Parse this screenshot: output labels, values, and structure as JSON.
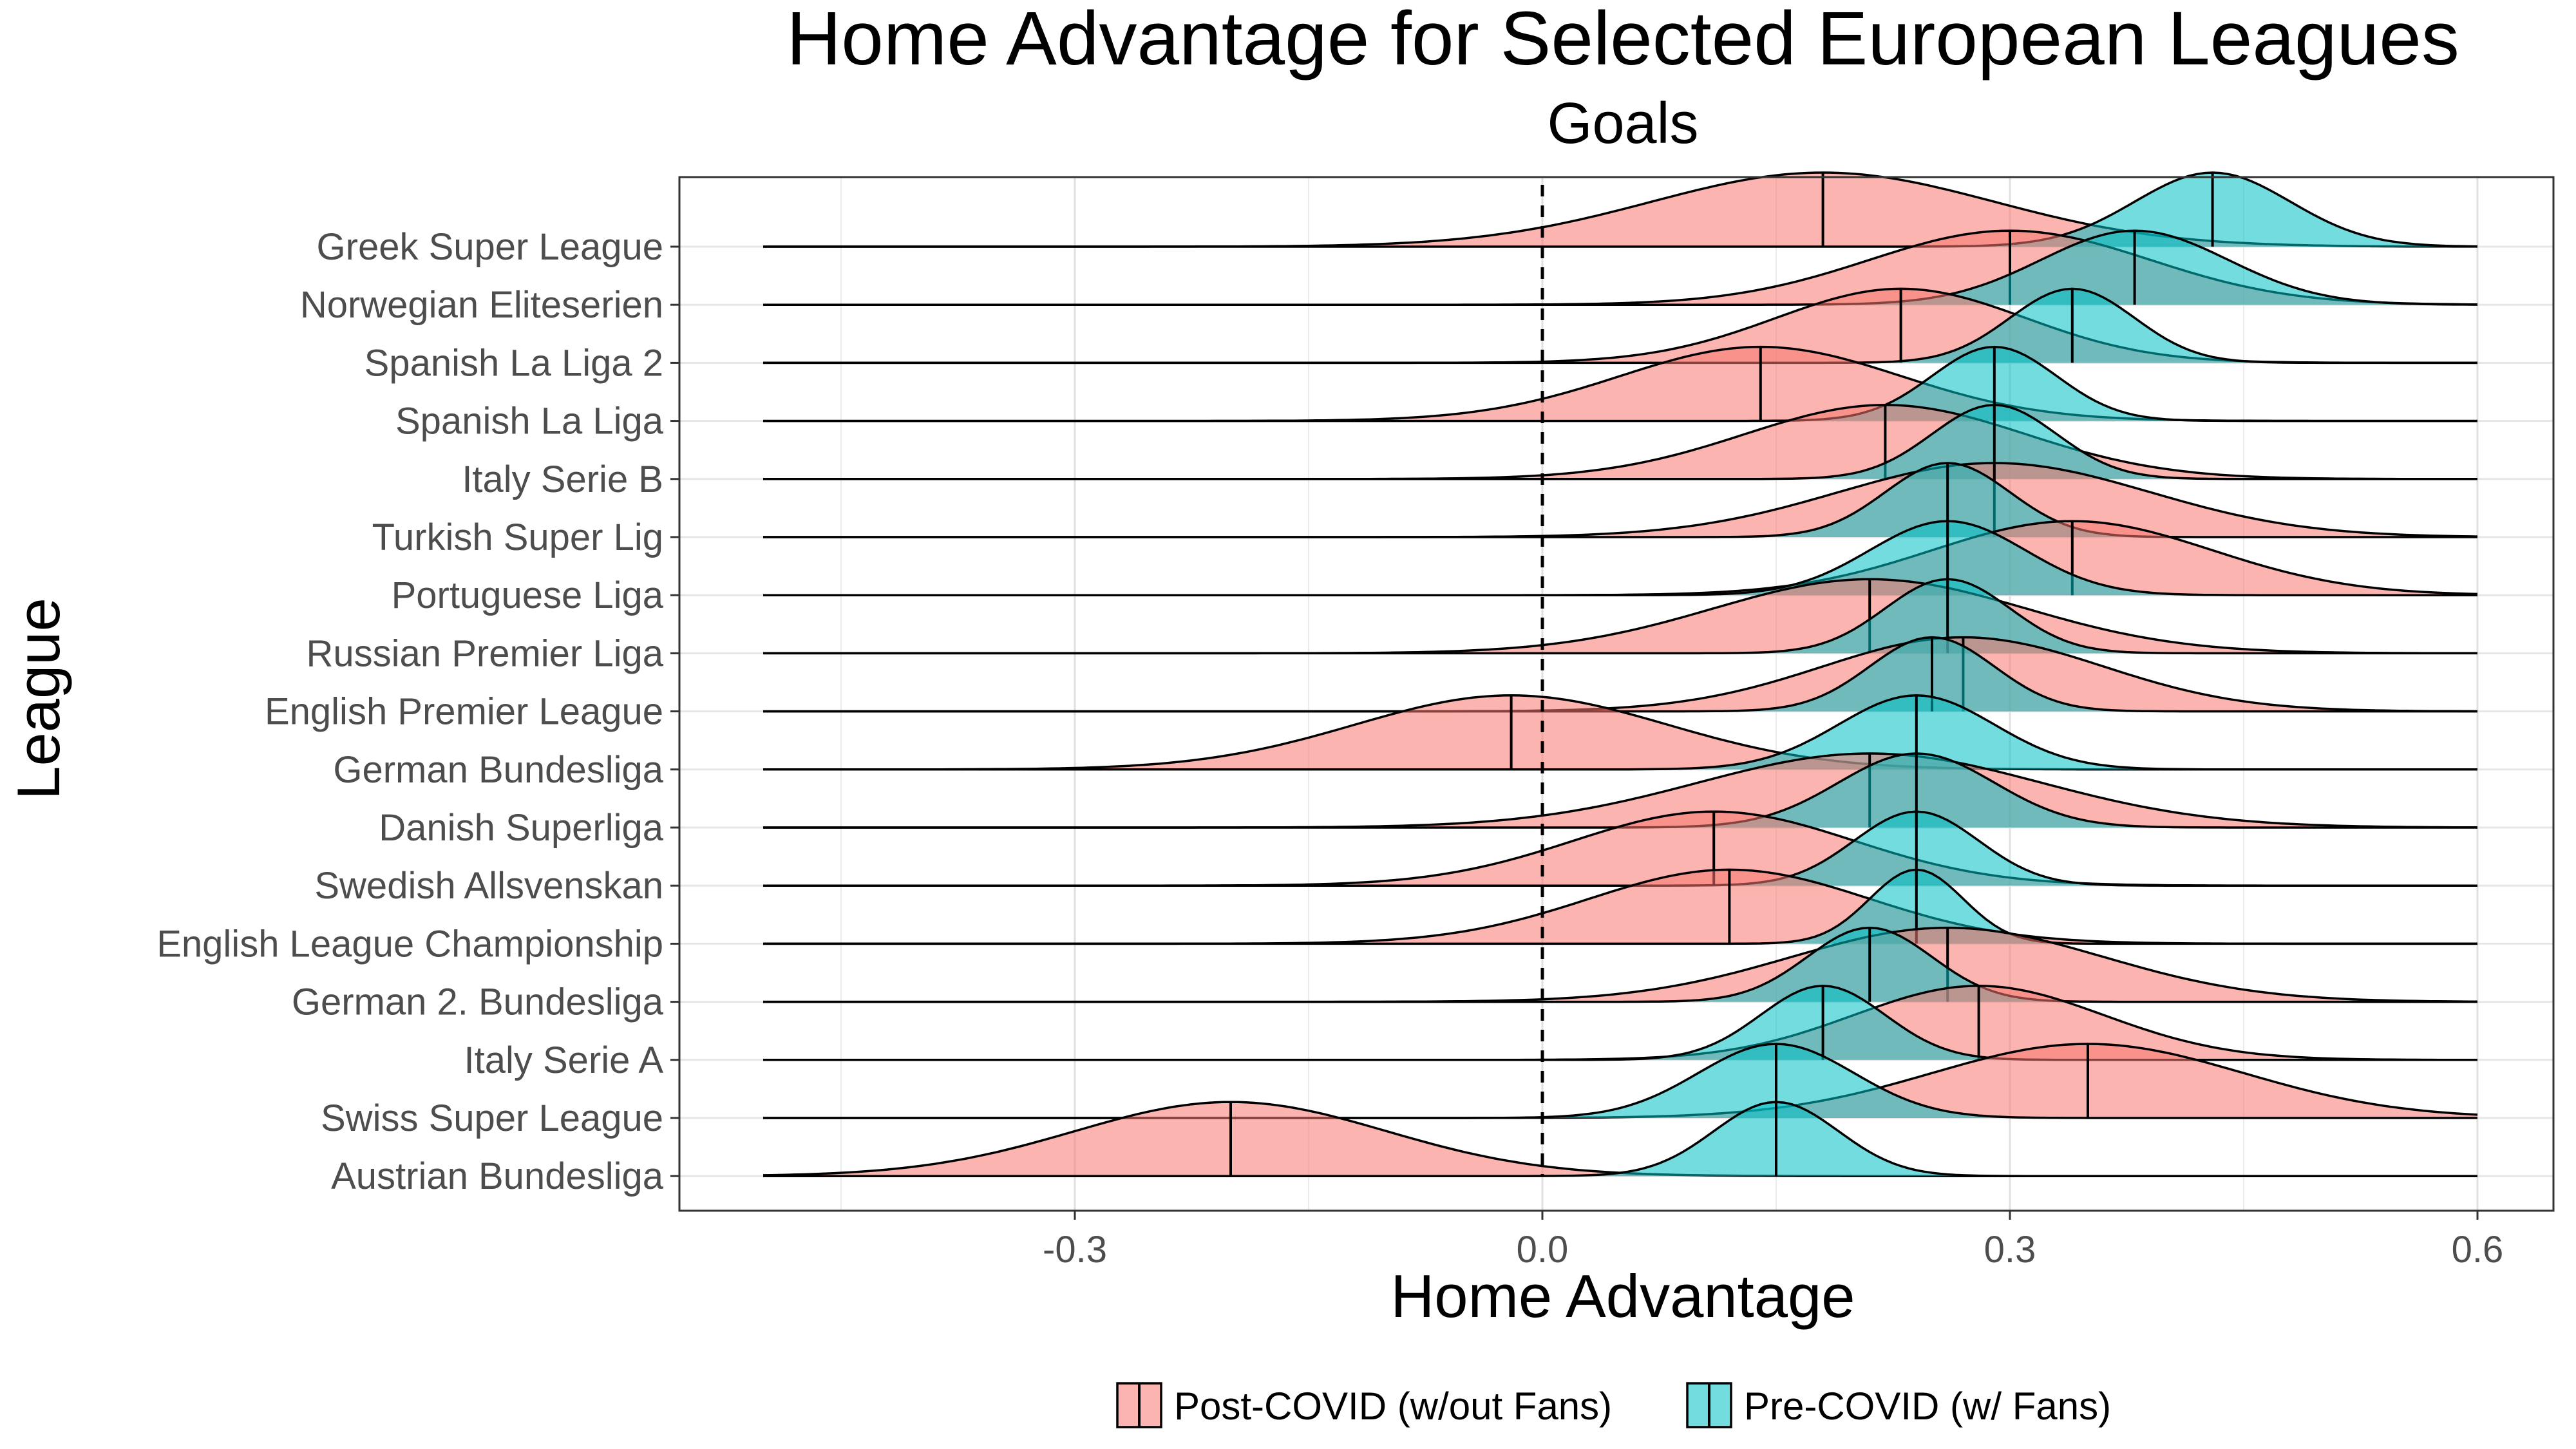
{
  "chart_data": {
    "type": "ridgeline",
    "title": "Home Advantage for Selected European Leagues",
    "subtitle": "Goals",
    "xlabel": "Home Advantage",
    "ylabel": "League",
    "xlim": [
      -0.5,
      0.6
    ],
    "x_ticks": [
      {
        "value": -0.3,
        "label": "-0.3"
      },
      {
        "value": 0.0,
        "label": "0.0"
      },
      {
        "value": 0.3,
        "label": "0.3"
      },
      {
        "value": 0.6,
        "label": "0.6"
      }
    ],
    "reference_line": {
      "value": 0.0,
      "style": "dashed"
    },
    "grid": true,
    "legend_position": "bottom",
    "series": [
      {
        "name": "Post-COVID (w/out Fans)",
        "color": "#F8766D"
      },
      {
        "name": "Pre-COVID (w/ Fans)",
        "color": "#00BFC4"
      }
    ],
    "categories": [
      {
        "league": "Greek Super League",
        "post": {
          "mean": 0.18,
          "sd": 0.11
        },
        "pre": {
          "mean": 0.43,
          "sd": 0.05
        }
      },
      {
        "league": "Norwegian Eliteserien",
        "post": {
          "mean": 0.3,
          "sd": 0.09
        },
        "pre": {
          "mean": 0.38,
          "sd": 0.06
        }
      },
      {
        "league": "Spanish La Liga 2",
        "post": {
          "mean": 0.23,
          "sd": 0.08
        },
        "pre": {
          "mean": 0.34,
          "sd": 0.04
        }
      },
      {
        "league": "Spanish La Liga",
        "post": {
          "mean": 0.14,
          "sd": 0.09
        },
        "pre": {
          "mean": 0.29,
          "sd": 0.04
        }
      },
      {
        "league": "Italy Serie B",
        "post": {
          "mean": 0.22,
          "sd": 0.09
        },
        "pre": {
          "mean": 0.29,
          "sd": 0.04
        }
      },
      {
        "league": "Turkish Super Lig",
        "post": {
          "mean": 0.29,
          "sd": 0.1
        },
        "pre": {
          "mean": 0.26,
          "sd": 0.04
        }
      },
      {
        "league": "Portuguese Liga",
        "post": {
          "mean": 0.34,
          "sd": 0.09
        },
        "pre": {
          "mean": 0.26,
          "sd": 0.05
        }
      },
      {
        "league": "Russian Premier Liga",
        "post": {
          "mean": 0.21,
          "sd": 0.1
        },
        "pre": {
          "mean": 0.26,
          "sd": 0.04
        }
      },
      {
        "league": "English Premier League",
        "post": {
          "mean": 0.27,
          "sd": 0.09
        },
        "pre": {
          "mean": 0.25,
          "sd": 0.04
        }
      },
      {
        "league": "German Bundesliga",
        "post": {
          "mean": -0.02,
          "sd": 0.1
        },
        "pre": {
          "mean": 0.24,
          "sd": 0.05
        }
      },
      {
        "league": "Danish Superliga",
        "post": {
          "mean": 0.21,
          "sd": 0.11
        },
        "pre": {
          "mean": 0.24,
          "sd": 0.05
        }
      },
      {
        "league": "Swedish Allsvenskan",
        "post": {
          "mean": 0.11,
          "sd": 0.09
        },
        "pre": {
          "mean": 0.24,
          "sd": 0.04
        }
      },
      {
        "league": "English League Championship",
        "post": {
          "mean": 0.12,
          "sd": 0.09
        },
        "pre": {
          "mean": 0.24,
          "sd": 0.03
        }
      },
      {
        "league": "German 2. Bundesliga",
        "post": {
          "mean": 0.26,
          "sd": 0.1
        },
        "pre": {
          "mean": 0.21,
          "sd": 0.04
        }
      },
      {
        "league": "Italy Serie A",
        "post": {
          "mean": 0.28,
          "sd": 0.08
        },
        "pre": {
          "mean": 0.18,
          "sd": 0.04
        }
      },
      {
        "league": "Swiss Super League",
        "post": {
          "mean": 0.35,
          "sd": 0.1
        },
        "pre": {
          "mean": 0.15,
          "sd": 0.05
        }
      },
      {
        "league": "Austrian Bundesliga",
        "post": {
          "mean": -0.2,
          "sd": 0.1
        },
        "pre": {
          "mean": 0.15,
          "sd": 0.04
        }
      }
    ]
  }
}
